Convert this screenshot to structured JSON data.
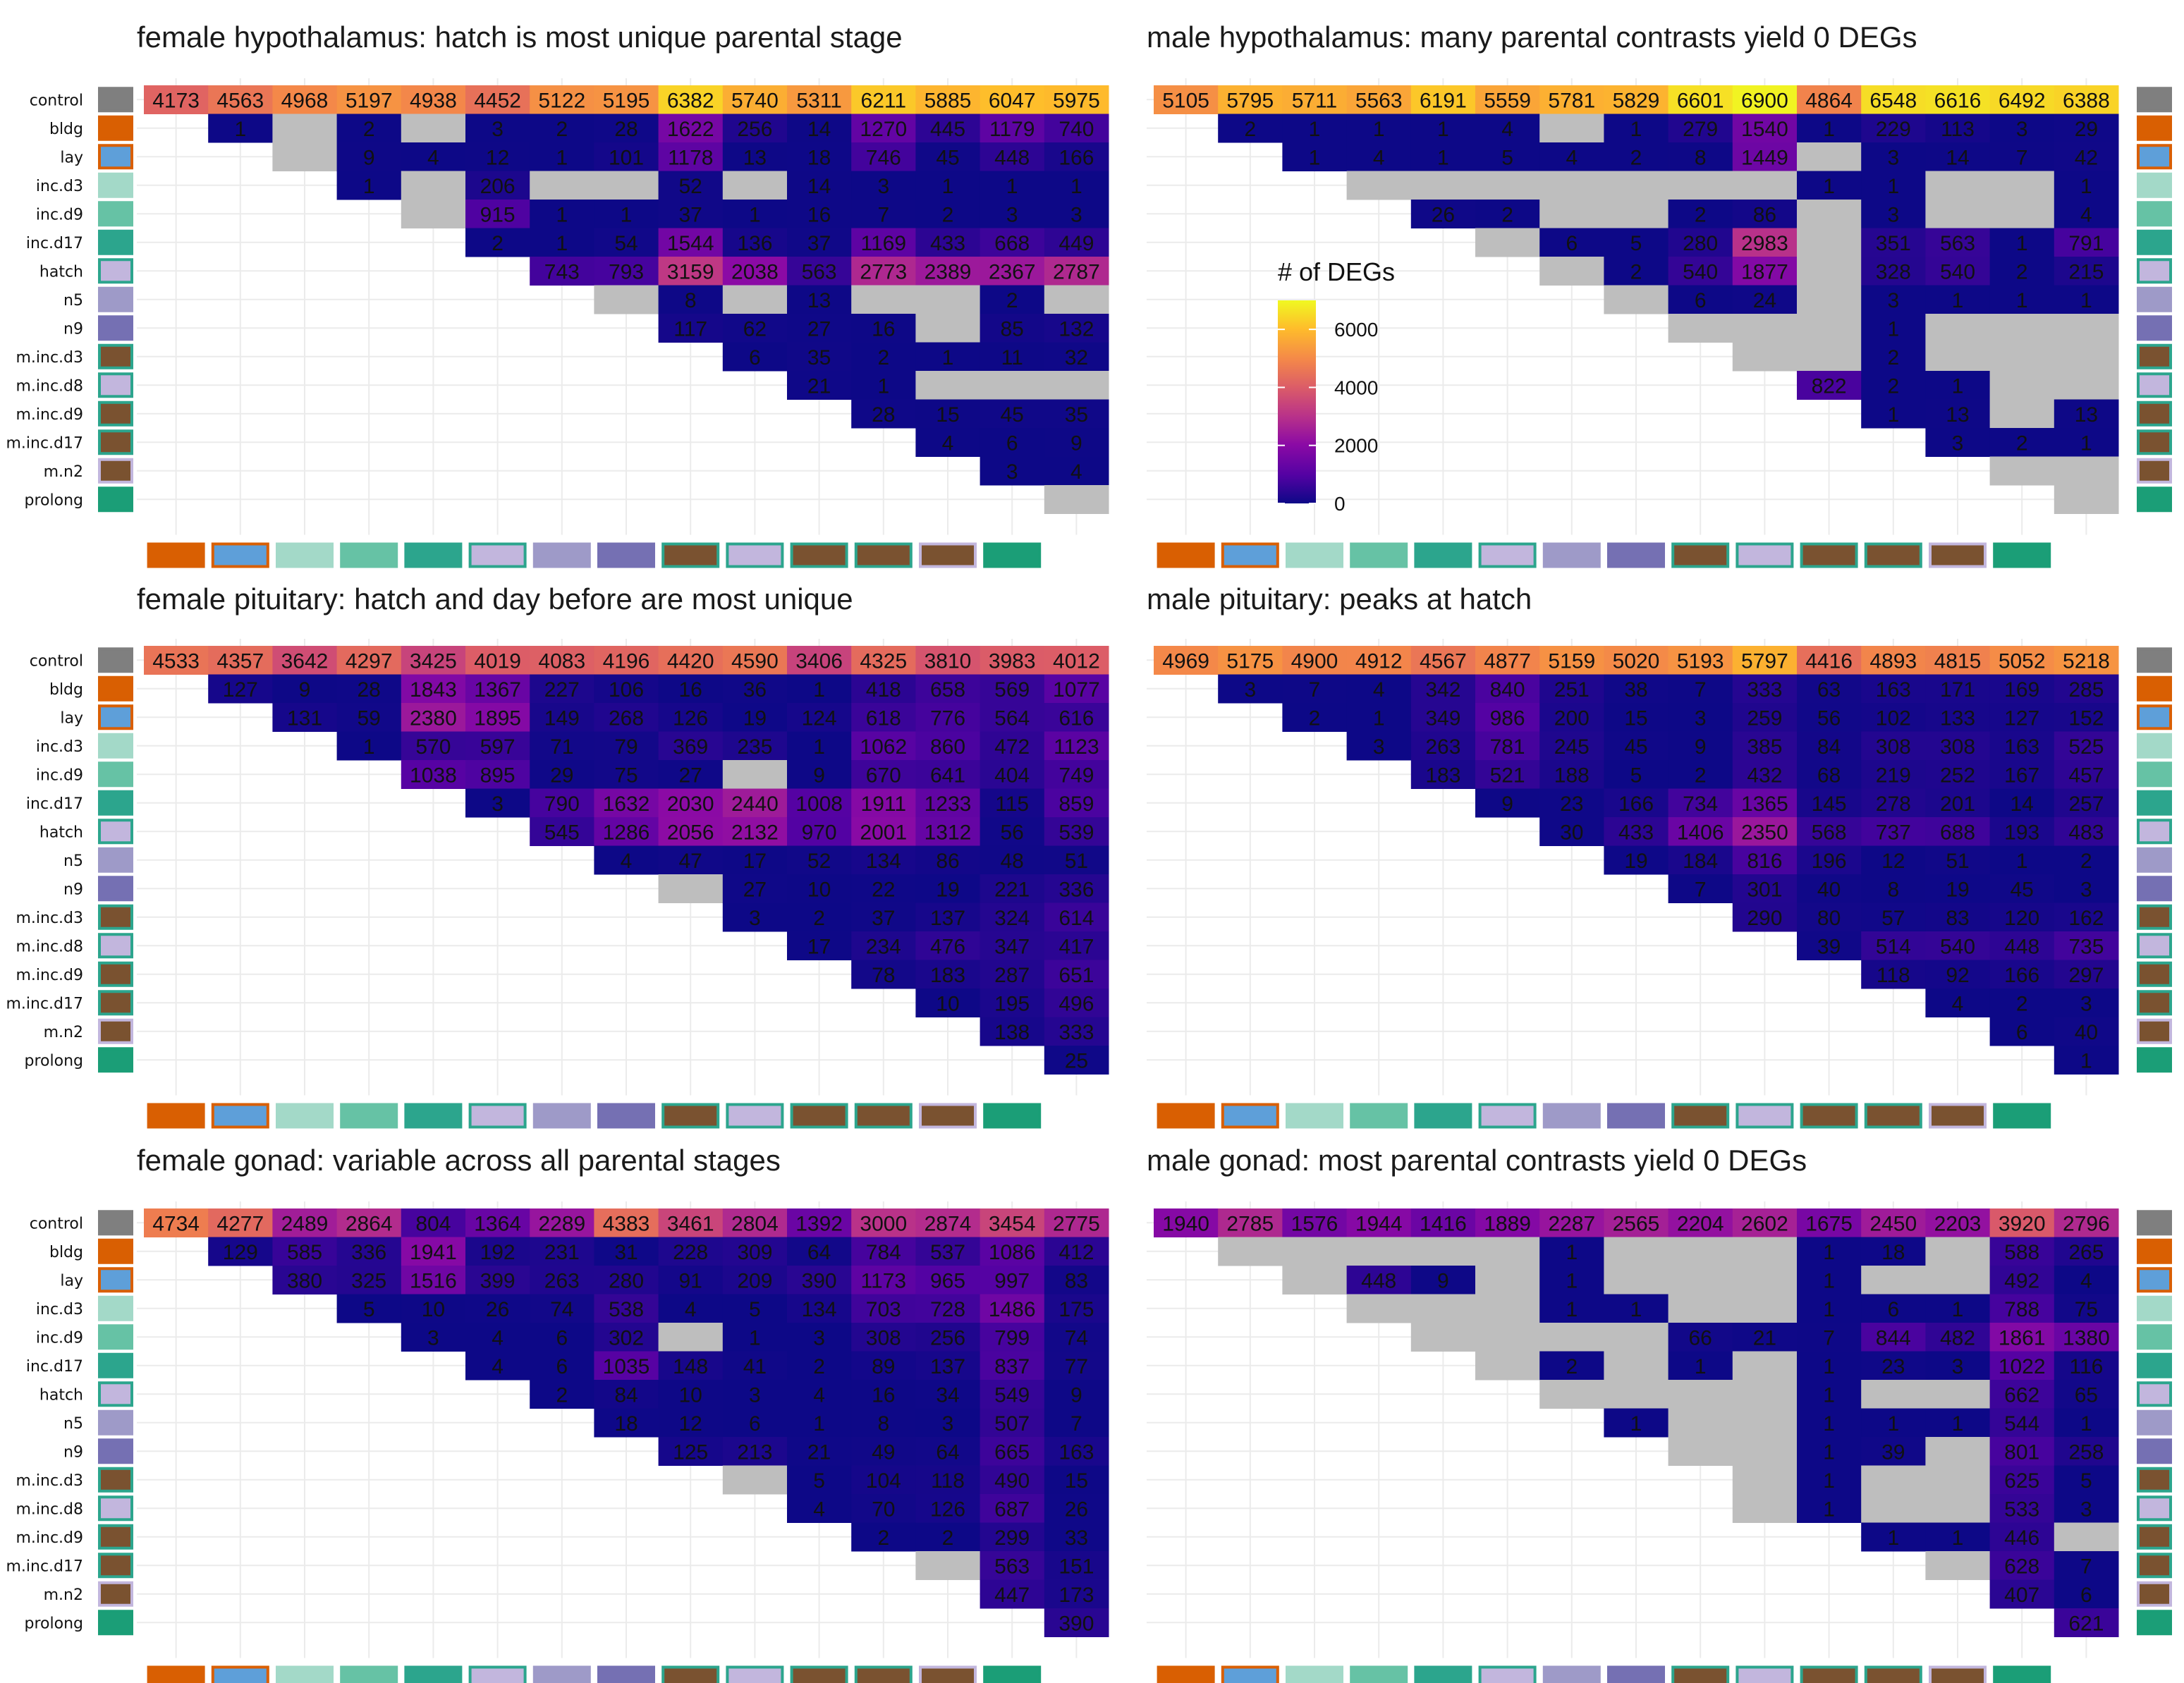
{
  "stages": [
    "control",
    "bldg",
    "lay",
    "inc.d3",
    "inc.d9",
    "inc.d17",
    "hatch",
    "n5",
    "n9",
    "m.inc.d3",
    "m.inc.d8",
    "m.inc.d9",
    "m.inc.d17",
    "m.n2",
    "prolong"
  ],
  "stage_colors": {
    "control": {
      "fill": "#7f7f7f",
      "border": "#7f7f7f"
    },
    "bldg": {
      "fill": "#d95f02",
      "border": "#d95f02"
    },
    "lay": {
      "fill": "#5e9fd9",
      "border": "#d95f02"
    },
    "inc.d3": {
      "fill": "#a3d9c8",
      "border": "#a3d9c8"
    },
    "inc.d9": {
      "fill": "#66c2a5",
      "border": "#66c2a5"
    },
    "inc.d17": {
      "fill": "#2ca58d",
      "border": "#2ca58d"
    },
    "hatch": {
      "fill": "#c2b6dd",
      "border": "#2ca58d"
    },
    "n5": {
      "fill": "#9e9ac8",
      "border": "#9e9ac8"
    },
    "n9": {
      "fill": "#7570b3",
      "border": "#7570b3"
    },
    "m.inc.d3": {
      "fill": "#7a5230",
      "border": "#2ca58d"
    },
    "m.inc.d8": {
      "fill": "#c2b6dd",
      "border": "#2ca58d"
    },
    "m.inc.d9": {
      "fill": "#7a5230",
      "border": "#2ca58d"
    },
    "m.inc.d17": {
      "fill": "#7a5230",
      "border": "#2ca58d"
    },
    "m.n2": {
      "fill": "#7a5230",
      "border": "#c2b6dd"
    },
    "prolong": {
      "fill": "#1b9e77",
      "border": "#1b9e77"
    }
  },
  "legend": {
    "title": "# of DEGs",
    "ticks": [
      0,
      2000,
      4000,
      6000
    ],
    "max": 7000,
    "placement": "inside male hypothalamus panel"
  },
  "chart_data": [
    {
      "type": "heatmap",
      "title": "female hypothalamus: hatch is most unique parental stage",
      "rows": [
        [
          "4173",
          "4563",
          "4968",
          "5197",
          "4938",
          "4452",
          "5122",
          "5195",
          "6382",
          "5740",
          "5311",
          "6211",
          "5885",
          "6047",
          "5975"
        ],
        [
          "1",
          "",
          "2",
          "",
          "3",
          "2",
          "28",
          "1622",
          "256",
          "14",
          "1270",
          "445",
          "1179",
          "740"
        ],
        [
          "",
          "9",
          "4",
          "12",
          "1",
          "101",
          "1178",
          "13",
          "18",
          "746",
          "45",
          "448",
          "166"
        ],
        [
          "1",
          "",
          "206",
          "",
          "",
          "52",
          "",
          "14",
          "3",
          "1",
          "1",
          "1"
        ],
        [
          "",
          "915",
          "1",
          "1",
          "37",
          "1",
          "16",
          "7",
          "2",
          "3",
          "3"
        ],
        [
          "2",
          "1",
          "54",
          "1544",
          "136",
          "37",
          "1169",
          "433",
          "668",
          "449"
        ],
        [
          "743",
          "793",
          "3159",
          "2038",
          "563",
          "2773",
          "2389",
          "2367",
          "2787"
        ],
        [
          "",
          "8",
          "",
          "13",
          "",
          "",
          "2",
          ""
        ],
        [
          "117",
          "62",
          "27",
          "16",
          "",
          "85",
          "132"
        ],
        [
          "6",
          "35",
          "2",
          "1",
          "11",
          "32"
        ],
        [
          "21",
          "1",
          "",
          "",
          ""
        ],
        [
          "28",
          "15",
          "45",
          "35"
        ],
        [
          "4",
          "6",
          "9"
        ],
        [
          "3",
          "4"
        ],
        [
          ""
        ]
      ]
    },
    {
      "type": "heatmap",
      "title": "male hypothalamus: many parental contrasts yield 0 DEGs",
      "rows": [
        [
          "5105",
          "5795",
          "5711",
          "5563",
          "6191",
          "5559",
          "5781",
          "5829",
          "6601",
          "6900",
          "4864",
          "6548",
          "6616",
          "6492",
          "6388"
        ],
        [
          "2",
          "1",
          "1",
          "1",
          "4",
          "",
          "1",
          "279",
          "1540",
          "1",
          "229",
          "113",
          "3",
          "29"
        ],
        [
          "1",
          "4",
          "1",
          "5",
          "4",
          "2",
          "8",
          "1449",
          "",
          "3",
          "14",
          "7",
          "42"
        ],
        [
          "",
          "",
          "",
          "",
          "",
          "",
          "",
          "1",
          "1",
          "",
          "",
          "1"
        ],
        [
          "26",
          "2",
          "",
          "",
          "2",
          "86",
          "",
          "3",
          "",
          "",
          "4"
        ],
        [
          "",
          "6",
          "5",
          "280",
          "2983",
          "",
          "351",
          "563",
          "1",
          "791"
        ],
        [
          "",
          "2",
          "540",
          "1877",
          "",
          "328",
          "540",
          "2",
          "215"
        ],
        [
          "",
          "6",
          "24",
          "",
          "3",
          "1",
          "1",
          "1"
        ],
        [
          "",
          "",
          "",
          "1",
          "",
          "",
          ""
        ],
        [
          "",
          "",
          "2",
          "",
          "",
          ""
        ],
        [
          "822",
          "2",
          "1",
          "",
          ""
        ],
        [
          "1",
          "13",
          "",
          "13"
        ],
        [
          "3",
          "2",
          "1"
        ],
        [
          "",
          ""
        ],
        [
          ""
        ]
      ]
    },
    {
      "type": "heatmap",
      "title": "female pituitary: hatch and day before are most unique",
      "rows": [
        [
          "4533",
          "4357",
          "3642",
          "4297",
          "3425",
          "4019",
          "4083",
          "4196",
          "4420",
          "4590",
          "3406",
          "4325",
          "3810",
          "3983",
          "4012"
        ],
        [
          "127",
          "9",
          "28",
          "1843",
          "1367",
          "227",
          "106",
          "16",
          "36",
          "1",
          "418",
          "658",
          "569",
          "1077"
        ],
        [
          "131",
          "59",
          "2380",
          "1895",
          "149",
          "268",
          "126",
          "19",
          "124",
          "618",
          "776",
          "564",
          "616"
        ],
        [
          "1",
          "570",
          "597",
          "71",
          "79",
          "369",
          "235",
          "1",
          "1062",
          "860",
          "472",
          "1123"
        ],
        [
          "1038",
          "895",
          "29",
          "75",
          "27",
          "",
          "9",
          "670",
          "641",
          "404",
          "749"
        ],
        [
          "3",
          "790",
          "1632",
          "2030",
          "2440",
          "1008",
          "1911",
          "1233",
          "115",
          "859"
        ],
        [
          "545",
          "1286",
          "2056",
          "2132",
          "970",
          "2001",
          "1312",
          "56",
          "539"
        ],
        [
          "4",
          "47",
          "17",
          "52",
          "134",
          "86",
          "48",
          "51"
        ],
        [
          "",
          "27",
          "10",
          "22",
          "19",
          "221",
          "336"
        ],
        [
          "3",
          "2",
          "37",
          "137",
          "324",
          "614"
        ],
        [
          "17",
          "234",
          "476",
          "347",
          "417"
        ],
        [
          "78",
          "183",
          "287",
          "651"
        ],
        [
          "10",
          "195",
          "496"
        ],
        [
          "138",
          "333"
        ],
        [
          "25"
        ]
      ]
    },
    {
      "type": "heatmap",
      "title": "male pituitary: peaks at hatch",
      "rows": [
        [
          "4969",
          "5175",
          "4900",
          "4912",
          "4567",
          "4877",
          "5159",
          "5020",
          "5193",
          "5797",
          "4416",
          "4893",
          "4815",
          "5052",
          "5218"
        ],
        [
          "3",
          "7",
          "4",
          "342",
          "840",
          "251",
          "38",
          "7",
          "333",
          "63",
          "163",
          "171",
          "169",
          "285"
        ],
        [
          "2",
          "1",
          "349",
          "986",
          "200",
          "15",
          "3",
          "259",
          "56",
          "102",
          "133",
          "127",
          "152"
        ],
        [
          "3",
          "263",
          "781",
          "245",
          "45",
          "9",
          "385",
          "84",
          "308",
          "308",
          "163",
          "525"
        ],
        [
          "183",
          "521",
          "188",
          "5",
          "2",
          "432",
          "68",
          "219",
          "252",
          "167",
          "457"
        ],
        [
          "9",
          "23",
          "166",
          "734",
          "1365",
          "145",
          "278",
          "201",
          "14",
          "257"
        ],
        [
          "30",
          "433",
          "1406",
          "2350",
          "568",
          "737",
          "688",
          "193",
          "483"
        ],
        [
          "19",
          "184",
          "816",
          "196",
          "12",
          "51",
          "1",
          "2"
        ],
        [
          "7",
          "301",
          "40",
          "8",
          "19",
          "45",
          "3"
        ],
        [
          "290",
          "80",
          "57",
          "83",
          "120",
          "162"
        ],
        [
          "39",
          "514",
          "540",
          "448",
          "735"
        ],
        [
          "118",
          "92",
          "166",
          "297"
        ],
        [
          "4",
          "2",
          "3"
        ],
        [
          "6",
          "40"
        ],
        [
          "1"
        ]
      ]
    },
    {
      "type": "heatmap",
      "title": "female gonad: variable across all parental stages",
      "rows": [
        [
          "4734",
          "4277",
          "2489",
          "2864",
          "804",
          "1364",
          "2289",
          "4383",
          "3461",
          "2804",
          "1392",
          "3000",
          "2874",
          "3454",
          "2775"
        ],
        [
          "129",
          "585",
          "336",
          "1941",
          "192",
          "231",
          "31",
          "228",
          "309",
          "64",
          "784",
          "537",
          "1086",
          "412"
        ],
        [
          "380",
          "325",
          "1516",
          "399",
          "263",
          "280",
          "91",
          "209",
          "390",
          "1173",
          "965",
          "997",
          "83"
        ],
        [
          "5",
          "10",
          "26",
          "74",
          "538",
          "4",
          "5",
          "134",
          "703",
          "728",
          "1486",
          "175"
        ],
        [
          "3",
          "4",
          "6",
          "302",
          "",
          "1",
          "3",
          "308",
          "256",
          "799",
          "74"
        ],
        [
          "4",
          "6",
          "1035",
          "148",
          "41",
          "2",
          "89",
          "137",
          "837",
          "77"
        ],
        [
          "2",
          "84",
          "10",
          "3",
          "4",
          "16",
          "34",
          "549",
          "9"
        ],
        [
          "18",
          "12",
          "6",
          "1",
          "8",
          "3",
          "507",
          "7"
        ],
        [
          "125",
          "213",
          "21",
          "49",
          "64",
          "665",
          "163"
        ],
        [
          "",
          "5",
          "104",
          "118",
          "490",
          "15"
        ],
        [
          "4",
          "70",
          "126",
          "687",
          "26"
        ],
        [
          "2",
          "2",
          "299",
          "33"
        ],
        [
          "",
          "563",
          "151"
        ],
        [
          "447",
          "173"
        ],
        [
          "390"
        ]
      ]
    },
    {
      "type": "heatmap",
      "title": "male gonad: most parental contrasts yield 0 DEGs",
      "rows": [
        [
          "1940",
          "2785",
          "1576",
          "1944",
          "1416",
          "1889",
          "2287",
          "2565",
          "2204",
          "2602",
          "1675",
          "2450",
          "2203",
          "3920",
          "2796"
        ],
        [
          "",
          "",
          "",
          "",
          "",
          "1",
          "",
          "",
          "",
          "1",
          "18",
          "",
          "588",
          "265"
        ],
        [
          "",
          "448",
          "9",
          "",
          "1",
          "",
          "",
          "",
          "1",
          "",
          "",
          "492",
          "4"
        ],
        [
          "",
          "",
          "",
          "1",
          "1",
          "",
          "",
          "1",
          "6",
          "1",
          "788",
          "75"
        ],
        [
          "",
          "",
          "",
          "",
          "66",
          "21",
          "7",
          "844",
          "482",
          "1861",
          "1380"
        ],
        [
          "",
          "2",
          "",
          "1",
          "",
          "1",
          "23",
          "3",
          "1022",
          "116"
        ],
        [
          "",
          "",
          "",
          "",
          "1",
          "",
          "",
          "662",
          "65"
        ],
        [
          "1",
          "",
          "",
          "1",
          "1",
          "1",
          "544",
          "1"
        ],
        [
          "",
          "",
          "1",
          "39",
          "",
          "801",
          "258"
        ],
        [
          "",
          "1",
          "",
          "",
          "625",
          "5"
        ],
        [
          "",
          "1",
          "",
          "",
          "533",
          "3"
        ],
        [
          "1",
          "1",
          "446",
          ""
        ],
        [
          "",
          "628",
          "7"
        ],
        [
          "407",
          "6"
        ],
        [
          "621"
        ]
      ]
    }
  ]
}
